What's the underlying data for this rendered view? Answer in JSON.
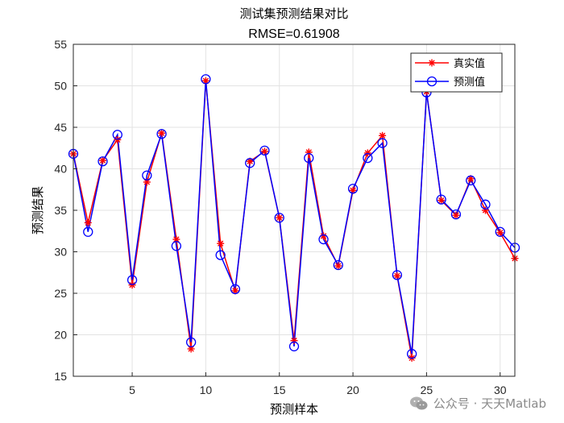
{
  "chart_data": {
    "type": "line",
    "title": "测试集预测结果对比",
    "subtitle": "RMSE=0.61908",
    "xlabel": "预测样本",
    "ylabel": "预测结果",
    "xlim": [
      1,
      31
    ],
    "ylim": [
      15,
      55
    ],
    "xticks": [
      5,
      10,
      15,
      20,
      25,
      30
    ],
    "yticks": [
      15,
      20,
      25,
      30,
      35,
      40,
      45,
      50,
      55
    ],
    "grid": true,
    "legend_position": "top-right",
    "x": [
      1,
      2,
      3,
      4,
      5,
      6,
      7,
      8,
      9,
      10,
      11,
      12,
      13,
      14,
      15,
      16,
      17,
      18,
      19,
      20,
      21,
      22,
      23,
      24,
      25,
      26,
      27,
      28,
      29,
      30,
      31
    ],
    "series": [
      {
        "name": "真实值",
        "color": "#ff0000",
        "marker": "asterisk",
        "values": [
          41.8,
          33.5,
          41.0,
          43.5,
          26.0,
          38.4,
          44.3,
          31.5,
          18.3,
          50.6,
          31.0,
          25.3,
          40.9,
          42.1,
          34.1,
          19.3,
          42.0,
          31.9,
          28.3,
          37.4,
          41.9,
          44.0,
          27.1,
          17.2,
          49.3,
          36.2,
          34.4,
          38.8,
          35.0,
          32.3,
          29.2
        ]
      },
      {
        "name": "预测值",
        "color": "#0000ff",
        "marker": "circle",
        "values": [
          41.8,
          32.4,
          40.9,
          44.1,
          26.6,
          39.2,
          44.2,
          30.7,
          19.1,
          50.8,
          29.6,
          25.5,
          40.7,
          42.2,
          34.1,
          18.6,
          41.3,
          31.5,
          28.4,
          37.6,
          41.3,
          43.1,
          27.2,
          17.7,
          49.2,
          36.3,
          34.5,
          38.6,
          35.7,
          32.4,
          30.5
        ]
      }
    ]
  },
  "watermark": {
    "text": "公众号 · 天天Matlab",
    "icon": "wechat-icon"
  }
}
